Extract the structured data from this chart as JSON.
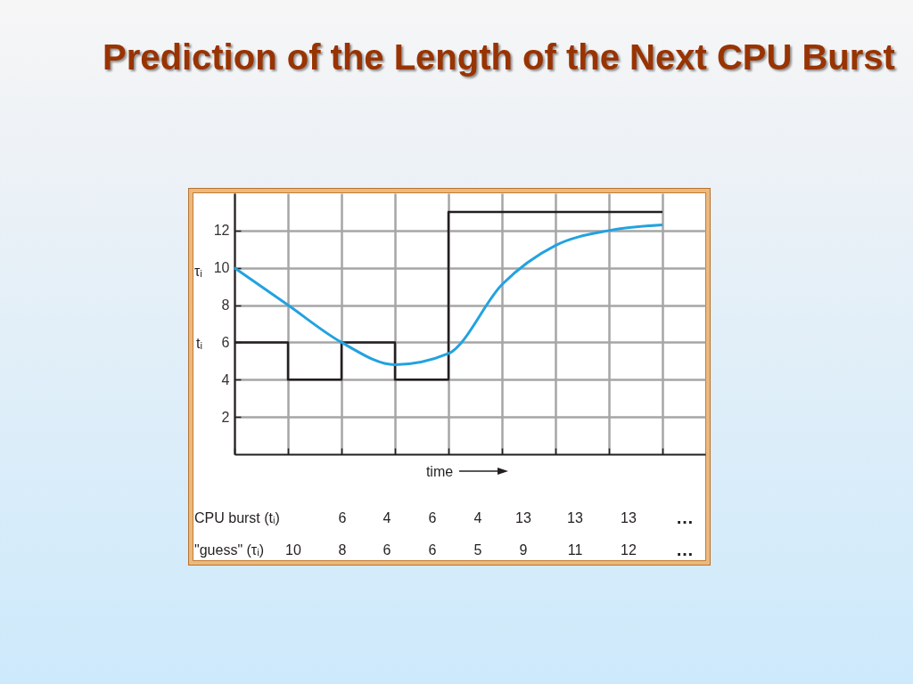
{
  "chart_data": {
    "type": "line",
    "title": "Prediction of the Length of the Next CPU Burst",
    "xlabel": "time",
    "categories": [
      null,
      null,
      null,
      null,
      null,
      null,
      null,
      null,
      null
    ],
    "ylim": [
      0,
      14
    ],
    "yticks": [
      2,
      4,
      6,
      8,
      10,
      12
    ],
    "grid": true,
    "tick_labels": "y",
    "series": [
      {
        "type": "step",
        "color": "#231f20",
        "values": [
          6,
          4,
          6,
          4,
          13,
          13,
          13,
          13,
          13
        ]
      },
      {
        "type": "line",
        "color": "#22a2e0",
        "values": [
          10,
          8,
          6,
          4.8,
          5.4,
          9.1,
          11.2,
          12,
          12.3
        ]
      }
    ],
    "annotations": [
      "τᵢ",
      "tᵢ",
      "CPU burst (tᵢ)",
      "6",
      "4",
      "6",
      "4",
      "13",
      "13",
      "13",
      "…",
      "\"guess\" (τᵢ)",
      "10",
      "8",
      "6",
      "6",
      "5",
      "9",
      "11",
      "12",
      "…"
    ]
  }
}
